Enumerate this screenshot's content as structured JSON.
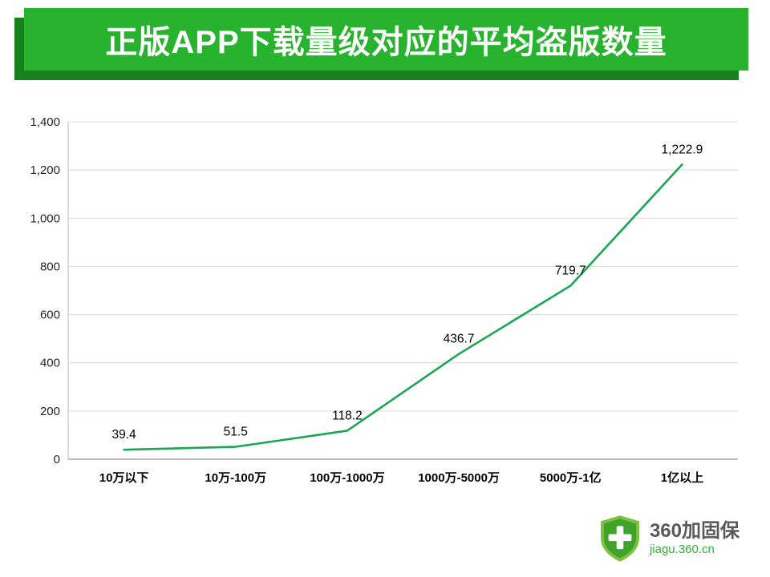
{
  "banner": {
    "title": "正版APP下载量级对应的平均盗版数量",
    "bg_color": "#27b32d",
    "shadow_color": "#17821c"
  },
  "chart_data": {
    "type": "line",
    "title": "正版APP下载量级对应的平均盗版数量",
    "categories": [
      "10万以下",
      "10万-100万",
      "100万-1000万",
      "1000万-5000万",
      "5000万-1亿",
      "1亿以上"
    ],
    "values": [
      39.4,
      51.5,
      118.2,
      436.7,
      719.7,
      1222.9
    ],
    "data_labels": [
      "39.4",
      "51.5",
      "118.2",
      "436.7",
      "719.7",
      "1,222.9"
    ],
    "xlabel": "",
    "ylabel": "",
    "ylim": [
      0,
      1400
    ],
    "ytick_step": 200,
    "ytick_labels": [
      "0",
      "200",
      "400",
      "600",
      "800",
      "1,000",
      "1,200",
      "1,400"
    ],
    "grid": true,
    "legend": "none",
    "line_color": "#1aa653",
    "grid_color": "#d9d9d9",
    "axis_color": "#a6a6a6",
    "label_color": "#000000"
  },
  "footer": {
    "brand": "360加固保",
    "url": "jiagu.360.cn",
    "shield_icon": "shield-plus-icon"
  }
}
